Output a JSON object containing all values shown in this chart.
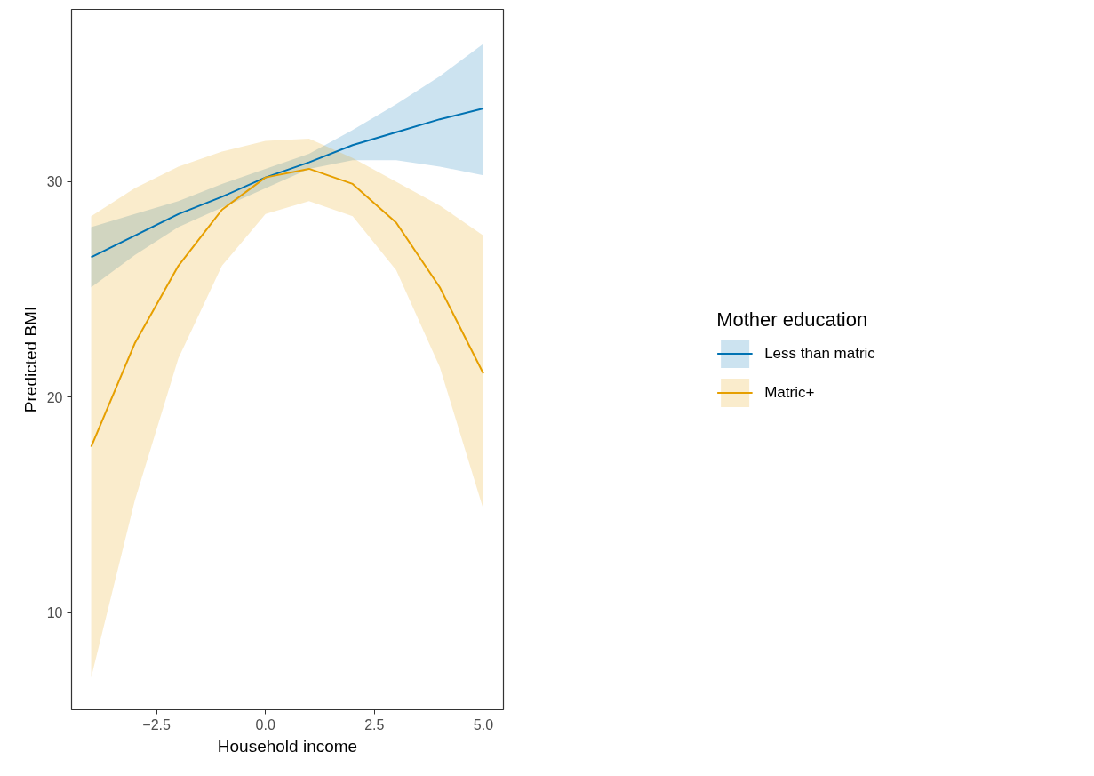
{
  "chart_data": {
    "type": "line",
    "xlabel": "Household income",
    "ylabel": "Predicted BMI",
    "legend_title": "Mother education",
    "x": [
      -4,
      -3,
      -2,
      -1,
      0,
      1,
      2,
      3,
      4,
      5
    ],
    "series": [
      {
        "name": "Less than matric",
        "color": "#0072b2",
        "values": [
          26.5,
          27.5,
          28.5,
          29.3,
          30.2,
          30.9,
          31.7,
          32.3,
          32.9,
          33.4
        ],
        "lower": [
          25.1,
          26.6,
          27.9,
          28.8,
          29.7,
          30.6,
          31.0,
          31.0,
          30.7,
          30.3
        ],
        "upper": [
          27.9,
          28.5,
          29.1,
          29.9,
          30.6,
          31.3,
          32.4,
          33.6,
          34.9,
          36.4
        ]
      },
      {
        "name": "Matric+",
        "color": "#e69f00",
        "values": [
          17.7,
          22.5,
          26.1,
          28.7,
          30.2,
          30.6,
          29.9,
          28.1,
          25.1,
          21.1
        ],
        "lower": [
          7.0,
          15.2,
          21.8,
          26.1,
          28.5,
          29.1,
          28.4,
          25.9,
          21.4,
          14.8
        ],
        "upper": [
          28.4,
          29.7,
          30.7,
          31.4,
          31.9,
          32.0,
          31.1,
          30.0,
          28.9,
          27.5
        ]
      }
    ],
    "xlim": [
      -4.45,
      5.46
    ],
    "ylim": [
      5.5,
      38
    ],
    "xticks": [
      {
        "value": -2.5,
        "label": "−2.5"
      },
      {
        "value": 0,
        "label": "0.0"
      },
      {
        "value": 2.5,
        "label": "2.5"
      },
      {
        "value": 5,
        "label": "5.0"
      }
    ],
    "yticks": [
      10,
      20,
      30
    ],
    "grid": false,
    "legend": "right",
    "line_style": "solid",
    "marker": "none"
  }
}
